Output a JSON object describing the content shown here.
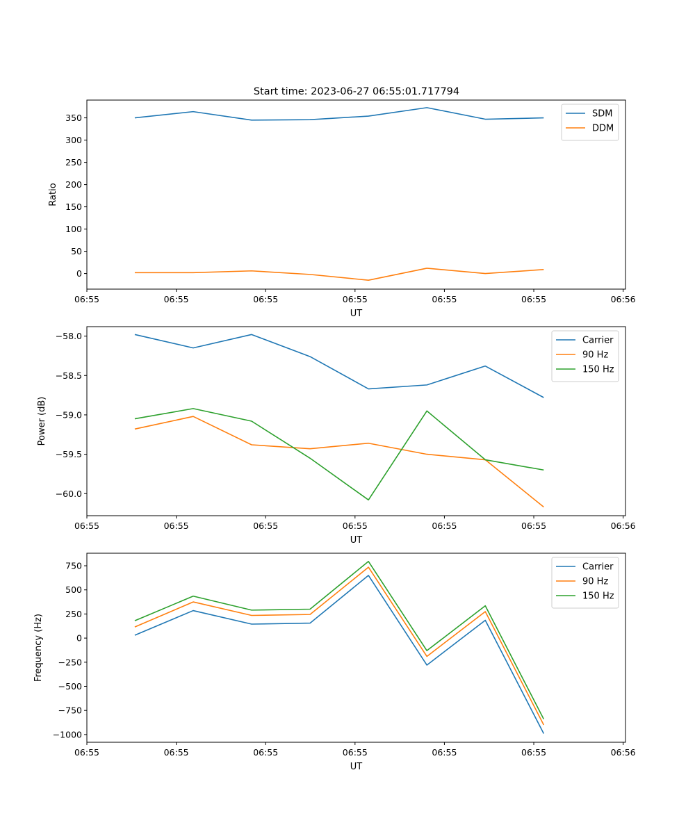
{
  "figure": {
    "title": "Start time: 2023-06-27 06:55:01.717794"
  },
  "colors": {
    "blue": "#1f77b4",
    "orange": "#ff7f0e",
    "green": "#2ca02c"
  },
  "chart_data": [
    {
      "type": "line",
      "title": "Start time: 2023-06-27 06:55:01.717794",
      "xlabel": "UT",
      "ylabel": "Ratio",
      "x": [
        1,
        2,
        3,
        4,
        5,
        6,
        7,
        8
      ],
      "xlim": [
        0.18,
        9.4
      ],
      "xticks": [
        0.18,
        1.71,
        3.24,
        4.77,
        6.3,
        7.83,
        9.36
      ],
      "xtick_labels": [
        "06:55",
        "06:55",
        "06:55",
        "06:55",
        "06:55",
        "06:55",
        "06:56"
      ],
      "ylim": [
        -35,
        390
      ],
      "yticks": [
        0,
        50,
        100,
        150,
        200,
        250,
        300,
        350
      ],
      "ytick_labels": [
        "0",
        "50",
        "100",
        "150",
        "200",
        "250",
        "300",
        "350"
      ],
      "legend": "top-right",
      "series": [
        {
          "name": "SDM",
          "color": "#1f77b4",
          "values": [
            350,
            364,
            345,
            346,
            354,
            373,
            347,
            350
          ]
        },
        {
          "name": "DDM",
          "color": "#ff7f0e",
          "values": [
            2,
            2,
            6,
            -2,
            -15,
            12,
            0,
            9
          ]
        }
      ]
    },
    {
      "type": "line",
      "title": "",
      "xlabel": "UT",
      "ylabel": "Power (dB)",
      "x": [
        1,
        2,
        3,
        4,
        5,
        6,
        7,
        8
      ],
      "xlim": [
        0.18,
        9.4
      ],
      "xticks": [
        0.18,
        1.71,
        3.24,
        4.77,
        6.3,
        7.83,
        9.36
      ],
      "xtick_labels": [
        "06:55",
        "06:55",
        "06:55",
        "06:55",
        "06:55",
        "06:55",
        "06:56"
      ],
      "ylim": [
        -60.28,
        -57.88
      ],
      "yticks": [
        -60.0,
        -59.5,
        -59.0,
        -58.5,
        -58.0
      ],
      "ytick_labels": [
        "−60.0",
        "−59.5",
        "−59.0",
        "−58.5",
        "−58.0"
      ],
      "legend": "top-right",
      "series": [
        {
          "name": "Carrier",
          "color": "#1f77b4",
          "values": [
            -57.98,
            -58.15,
            -57.98,
            -58.26,
            -58.67,
            -58.62,
            -58.38,
            -58.78
          ]
        },
        {
          "name": "90 Hz",
          "color": "#ff7f0e",
          "values": [
            -59.18,
            -59.02,
            -59.38,
            -59.43,
            -59.36,
            -59.5,
            -59.57,
            -60.17
          ]
        },
        {
          "name": "150 Hz",
          "color": "#2ca02c",
          "values": [
            -59.05,
            -58.92,
            -59.08,
            -59.55,
            -60.08,
            -58.95,
            -59.57,
            -59.7
          ]
        }
      ]
    },
    {
      "type": "line",
      "title": "",
      "xlabel": "UT",
      "ylabel": "Frequency (Hz)",
      "x": [
        1,
        2,
        3,
        4,
        5,
        6,
        7,
        8
      ],
      "xlim": [
        0.18,
        9.4
      ],
      "xticks": [
        0.18,
        1.71,
        3.24,
        4.77,
        6.3,
        7.83,
        9.36
      ],
      "xtick_labels": [
        "06:55",
        "06:55",
        "06:55",
        "06:55",
        "06:55",
        "06:55",
        "06:56"
      ],
      "ylim": [
        -1080,
        880
      ],
      "yticks": [
        -1000,
        -750,
        -500,
        -250,
        0,
        250,
        500,
        750
      ],
      "ytick_labels": [
        "−1000",
        "−750",
        "−500",
        "−250",
        "0",
        "250",
        "500",
        "750"
      ],
      "legend": "top-right",
      "series": [
        {
          "name": "Carrier",
          "color": "#1f77b4",
          "values": [
            30,
            285,
            145,
            155,
            650,
            -280,
            185,
            -990
          ]
        },
        {
          "name": "90 Hz",
          "color": "#ff7f0e",
          "values": [
            115,
            375,
            235,
            245,
            735,
            -190,
            275,
            -900
          ]
        },
        {
          "name": "150 Hz",
          "color": "#2ca02c",
          "values": [
            180,
            435,
            290,
            300,
            795,
            -130,
            335,
            -840
          ]
        }
      ]
    }
  ]
}
